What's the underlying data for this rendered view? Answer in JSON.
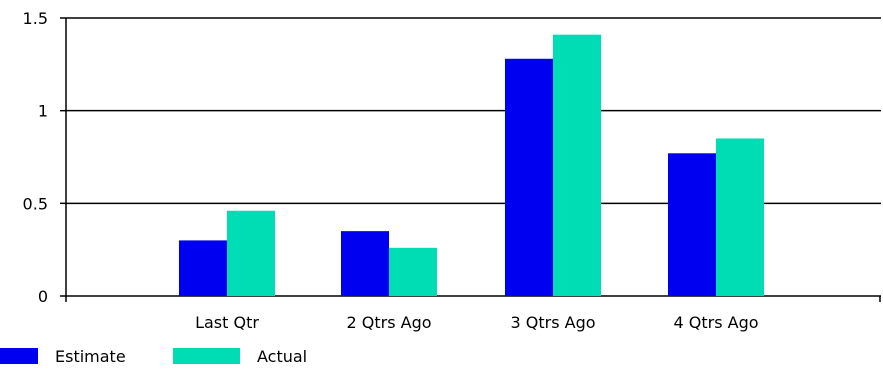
{
  "chart_data": {
    "type": "bar",
    "categories": [
      "Last Qtr",
      "2 Qtrs Ago",
      "3 Qtrs Ago",
      "4 Qtrs Ago"
    ],
    "series": [
      {
        "name": "Estimate",
        "color": "#0000f0",
        "values": [
          0.3,
          0.35,
          1.28,
          0.77
        ]
      },
      {
        "name": "Actual",
        "color": "#00dcb4",
        "values": [
          0.46,
          0.26,
          1.41,
          0.85
        ]
      }
    ],
    "yticks": [
      "0",
      "0.5",
      "1",
      "1.5"
    ],
    "ylim": [
      0,
      1.5
    ],
    "grid": true,
    "legend_position": "bottom-left",
    "title": "",
    "xlabel": "",
    "ylabel": ""
  }
}
